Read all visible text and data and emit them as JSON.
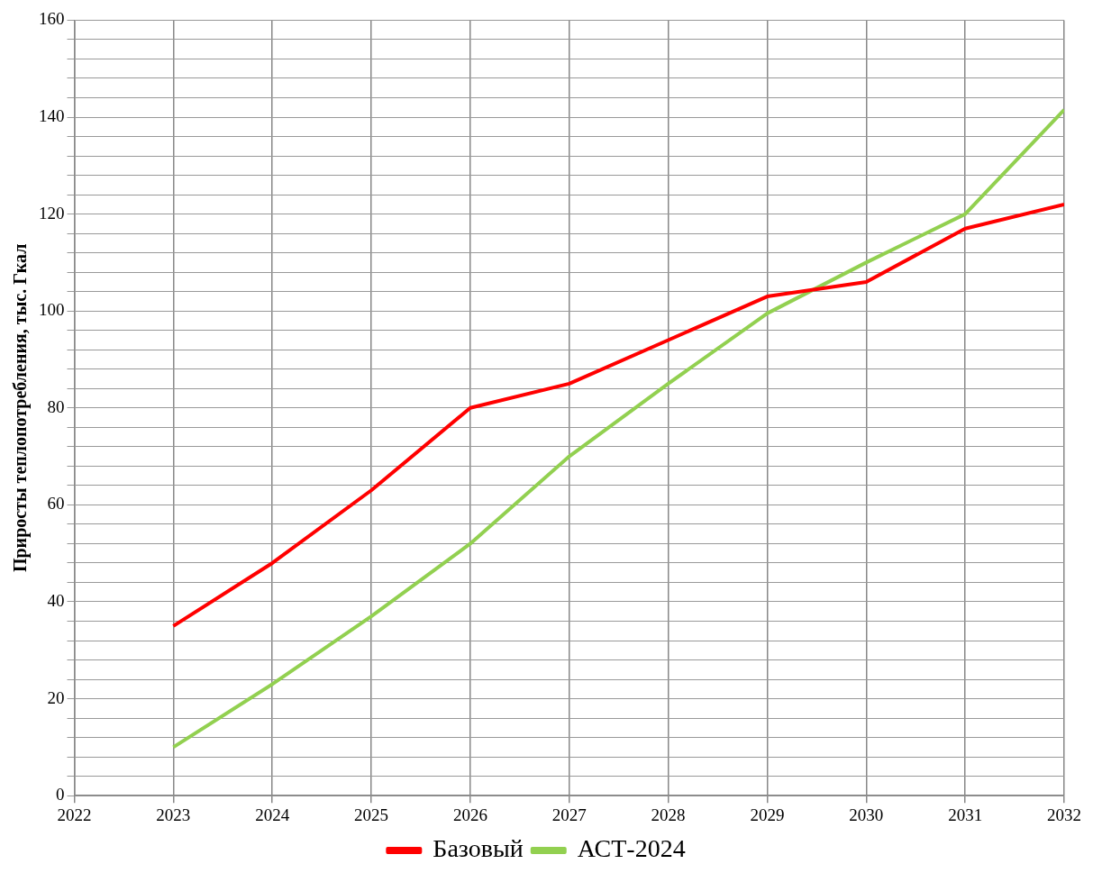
{
  "chart_data": {
    "type": "line",
    "ylabel": "Приросты теплопотребления, тыс. Гкал",
    "x": [
      2023,
      2024,
      2025,
      2026,
      2027,
      2028,
      2029,
      2030,
      2031,
      2032
    ],
    "series": [
      {
        "name": "Базовый",
        "color": "#ff0000",
        "values": [
          35,
          48,
          63,
          80,
          85,
          94,
          103,
          106,
          117,
          122
        ]
      },
      {
        "name": "АСТ-2024",
        "color": "#92d050",
        "values": [
          10,
          23,
          37,
          52,
          70,
          85,
          99.5,
          110,
          120,
          141.5
        ]
      }
    ],
    "xlim": [
      2022,
      2032
    ],
    "xticks": [
      2022,
      2023,
      2024,
      2025,
      2026,
      2027,
      2028,
      2029,
      2030,
      2031,
      2032
    ],
    "ylim": [
      0,
      160
    ],
    "yticks": [
      0,
      {
        "value": 4,
        "label": null
      },
      {
        "value": 8,
        "label": null
      },
      {
        "value": 12,
        "label": null
      },
      {
        "value": 16,
        "label": null
      },
      20,
      {
        "value": 24,
        "label": null
      },
      {
        "value": 28,
        "label": null
      },
      {
        "value": 32,
        "label": null
      },
      {
        "value": 36,
        "label": null
      },
      40,
      {
        "value": 44,
        "label": null
      },
      {
        "value": 48,
        "label": null
      },
      {
        "value": 52,
        "label": null
      },
      {
        "value": 56,
        "label": null
      },
      60,
      {
        "value": 64,
        "label": null
      },
      {
        "value": 68,
        "label": null
      },
      {
        "value": 72,
        "label": null
      },
      {
        "value": 76,
        "label": null
      },
      80,
      {
        "value": 84,
        "label": null
      },
      {
        "value": 88,
        "label": null
      },
      {
        "value": 92,
        "label": null
      },
      {
        "value": 96,
        "label": null
      },
      100,
      {
        "value": 104,
        "label": null
      },
      {
        "value": 108,
        "label": null
      },
      {
        "value": 112,
        "label": null
      },
      {
        "value": 116,
        "label": null
      },
      120,
      {
        "value": 124,
        "label": null
      },
      {
        "value": 128,
        "label": null
      },
      {
        "value": 132,
        "label": null
      },
      {
        "value": 136,
        "label": null
      },
      140,
      {
        "value": 144,
        "label": null
      },
      {
        "value": 148,
        "label": null
      },
      {
        "value": 152,
        "label": null
      },
      {
        "value": 156,
        "label": null
      },
      160
    ],
    "grid": true,
    "legend": "bottom",
    "marker": "none",
    "line_style": "solid"
  }
}
